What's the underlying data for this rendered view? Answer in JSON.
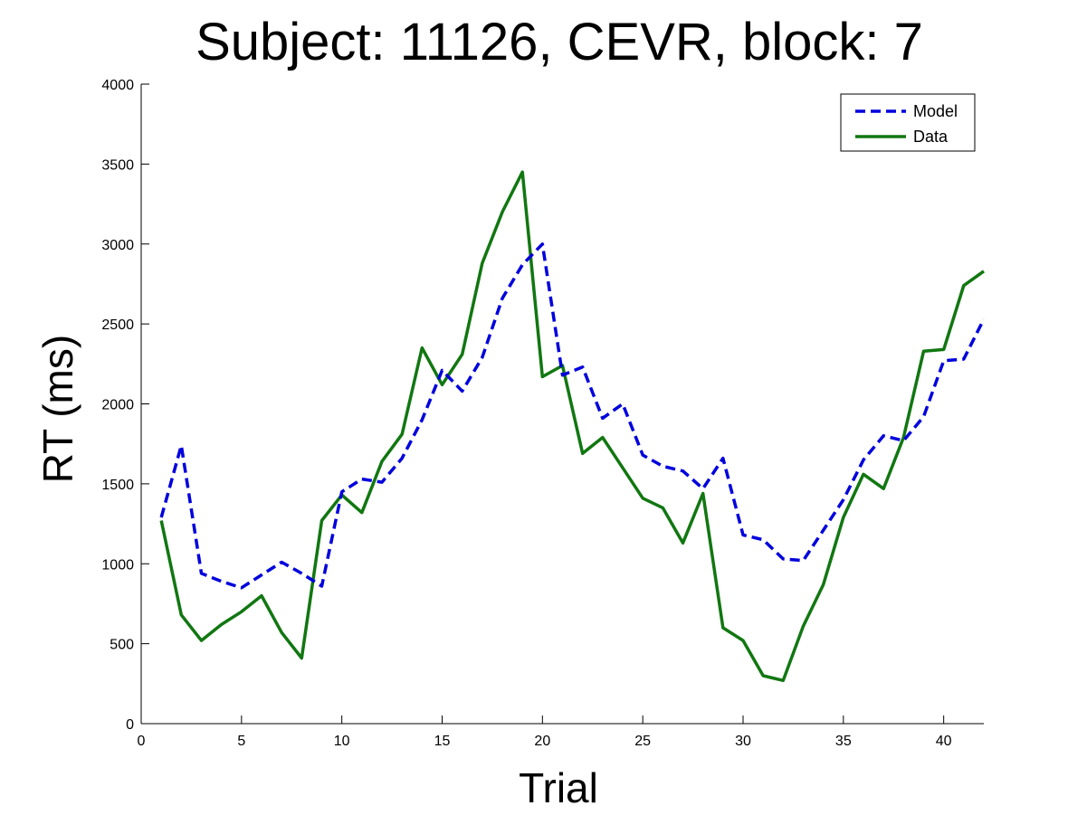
{
  "chart_data": {
    "type": "line",
    "title": "Subject: 11126, CEVR, block: 7",
    "xlabel": "Trial",
    "ylabel": "RT (ms)",
    "xlim": [
      0,
      42
    ],
    "ylim": [
      0,
      4000
    ],
    "xticks": [
      0,
      5,
      10,
      15,
      20,
      25,
      30,
      35,
      40
    ],
    "yticks": [
      0,
      500,
      1000,
      1500,
      2000,
      2500,
      3000,
      3500,
      4000
    ],
    "grid": false,
    "legend_position": "top-right",
    "x": [
      1,
      2,
      3,
      4,
      5,
      6,
      7,
      8,
      9,
      10,
      11,
      12,
      13,
      14,
      15,
      16,
      17,
      18,
      19,
      20,
      21,
      22,
      23,
      24,
      25,
      26,
      27,
      28,
      29,
      30,
      31,
      32,
      33,
      34,
      35,
      36,
      37,
      38,
      39,
      40,
      41,
      42
    ],
    "series": [
      {
        "name": "Model",
        "color": "#0000dd",
        "style": "dashed",
        "values": [
          1290,
          1740,
          940,
          890,
          850,
          930,
          1010,
          940,
          860,
          1450,
          1530,
          1510,
          1660,
          1900,
          2210,
          2080,
          2290,
          2660,
          2870,
          3000,
          2180,
          2230,
          1910,
          2000,
          1680,
          1610,
          1580,
          1470,
          1660,
          1180,
          1150,
          1030,
          1020,
          1210,
          1400,
          1650,
          1800,
          1770,
          1920,
          2270,
          2280,
          2530
        ]
      },
      {
        "name": "Data",
        "color": "#117711",
        "style": "solid",
        "values": [
          1270,
          680,
          520,
          620,
          700,
          800,
          570,
          410,
          1270,
          1430,
          1320,
          1640,
          1810,
          2350,
          2120,
          2310,
          2880,
          3200,
          3450,
          2170,
          2240,
          1690,
          1790,
          1600,
          1410,
          1350,
          1130,
          1440,
          600,
          520,
          300,
          270,
          610,
          870,
          1290,
          1560,
          1470,
          1790,
          2330,
          2340,
          2740,
          2830
        ]
      }
    ]
  }
}
